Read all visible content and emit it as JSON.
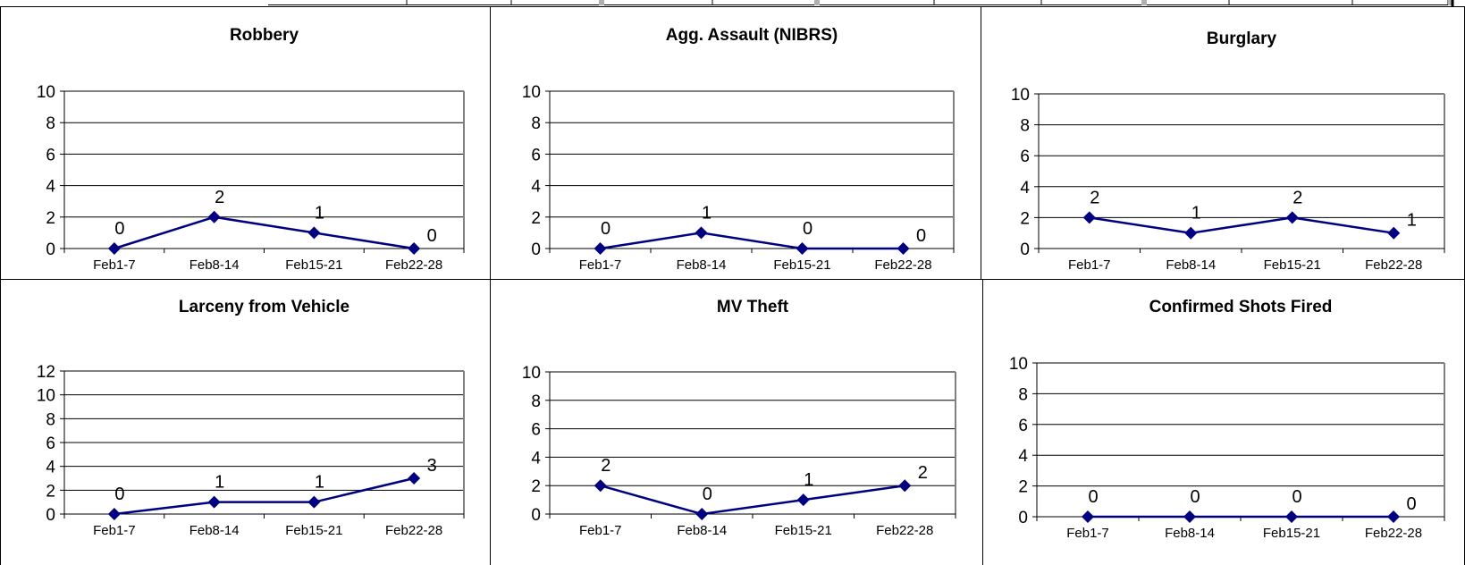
{
  "style": {
    "series_color": "#000080",
    "grid_color": "#000000",
    "plot_border_color": "#808080"
  },
  "chart_data": [
    {
      "type": "line",
      "title": "Robbery",
      "categories": [
        "Feb1-7",
        "Feb8-14",
        "Feb15-21",
        "Feb22-28"
      ],
      "values": [
        0,
        2,
        1,
        0
      ],
      "data_labels": [
        "0",
        "2",
        "1",
        "0"
      ],
      "yticks": [
        "0",
        "2",
        "4",
        "6",
        "8",
        "10"
      ],
      "ylim": [
        0,
        10
      ],
      "grid": true,
      "marker": "diamond"
    },
    {
      "type": "line",
      "title": "Agg. Assault (NIBRS)",
      "categories": [
        "Feb1-7",
        "Feb8-14",
        "Feb15-21",
        "Feb22-28"
      ],
      "values": [
        0,
        1,
        0,
        0
      ],
      "data_labels": [
        "0",
        "1",
        "0",
        "0"
      ],
      "yticks": [
        "0",
        "2",
        "4",
        "6",
        "8",
        "10"
      ],
      "ylim": [
        0,
        10
      ],
      "grid": true,
      "marker": "diamond"
    },
    {
      "type": "line",
      "title": "Burglary",
      "categories": [
        "Feb1-7",
        "Feb8-14",
        "Feb15-21",
        "Feb22-28"
      ],
      "values": [
        2,
        1,
        2,
        1
      ],
      "data_labels": [
        "2",
        "1",
        "2",
        "1"
      ],
      "yticks": [
        "0",
        "2",
        "4",
        "6",
        "8",
        "10"
      ],
      "ylim": [
        0,
        10
      ],
      "grid": true,
      "marker": "diamond"
    },
    {
      "type": "line",
      "title": "Larceny from Vehicle",
      "categories": [
        "Feb1-7",
        "Feb8-14",
        "Feb15-21",
        "Feb22-28"
      ],
      "values": [
        0,
        1,
        1,
        3
      ],
      "data_labels": [
        "0",
        "1",
        "1",
        "3"
      ],
      "yticks": [
        "0",
        "2",
        "4",
        "6",
        "8",
        "10",
        "12"
      ],
      "ylim": [
        0,
        12
      ],
      "grid": true,
      "marker": "diamond"
    },
    {
      "type": "line",
      "title": "MV Theft",
      "categories": [
        "Feb1-7",
        "Feb8-14",
        "Feb15-21",
        "Feb22-28"
      ],
      "values": [
        2,
        0,
        1,
        2
      ],
      "data_labels": [
        "2",
        "0",
        "1",
        "2"
      ],
      "yticks": [
        "0",
        "2",
        "4",
        "6",
        "8",
        "10"
      ],
      "ylim": [
        0,
        10
      ],
      "grid": true,
      "marker": "diamond"
    },
    {
      "type": "line",
      "title": "Confirmed Shots Fired",
      "categories": [
        "Feb1-7",
        "Feb8-14",
        "Feb15-21",
        "Feb22-28"
      ],
      "values": [
        0,
        0,
        0,
        0
      ],
      "data_labels": [
        "0",
        "0",
        "0",
        "0"
      ],
      "yticks": [
        "0",
        "2",
        "4",
        "6",
        "8",
        "10"
      ],
      "ylim": [
        0,
        10
      ],
      "grid": true,
      "marker": "diamond"
    }
  ]
}
